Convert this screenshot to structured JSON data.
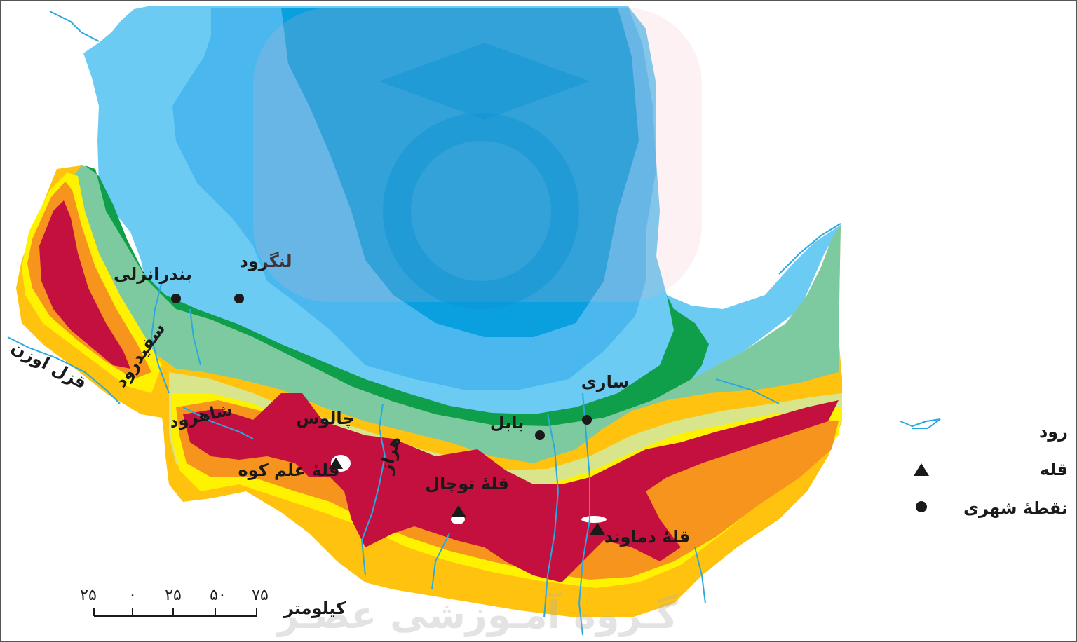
{
  "map": {
    "cities": [
      {
        "name": "بندرانزلی"
      },
      {
        "name": "لنگرود"
      },
      {
        "name": "ساری"
      },
      {
        "name": "بابل"
      },
      {
        "name": "چالوس"
      }
    ],
    "peaks": [
      {
        "name": "قلهٔ علم کوه"
      },
      {
        "name": "قلهٔ توچال"
      },
      {
        "name": "قلهٔ دماوند"
      }
    ],
    "rivers": [
      {
        "name": "سفیدرود"
      },
      {
        "name": "قزل اوزن"
      },
      {
        "name": "شاهرود"
      },
      {
        "name": "هراز"
      }
    ],
    "colors": {
      "sea_light": "#6ccbf3",
      "sea_mid": "#22a9e6",
      "sea_dark": "#0aa0e0",
      "coast_green": "#0f9e4a",
      "lowland_green": "#7dcaa0",
      "pale_yellow": "#d9e58a",
      "yellow": "#fff200",
      "gold": "#ffc20e",
      "orange": "#f7941d",
      "crimson": "#c4103f",
      "river": "#29a9e0"
    }
  },
  "legend": {
    "items": [
      {
        "label": "رود",
        "symbol": "river-line"
      },
      {
        "label": "قله",
        "symbol": "triangle"
      },
      {
        "label": "نقطهٔ شهری",
        "symbol": "dot"
      }
    ]
  },
  "scale": {
    "ticks": [
      "۲۵",
      "۰",
      "۲۵",
      "۵۰",
      "۷۵"
    ],
    "unit": "کیلومتر"
  },
  "watermark": {
    "text": "گـروه آمـوزشی عصـر"
  }
}
